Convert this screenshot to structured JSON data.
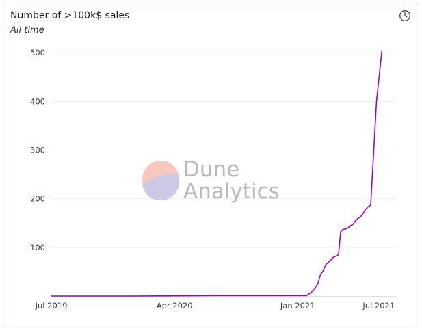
{
  "widget": {
    "title": "Number of >100k$ sales",
    "subtitle": "All time",
    "icon": "clock-icon"
  },
  "watermark": {
    "line1": "Dune",
    "line2": "Analytics",
    "logo_colors": [
      "#f7c9bd",
      "#c9c9e6"
    ]
  },
  "chart_data": {
    "type": "line",
    "title": "Number of >100k$ sales",
    "subtitle": "All time",
    "xlabel": "",
    "ylabel": "",
    "x_ticks": [
      {
        "date": "2019-07-01",
        "label": "Jul 2019"
      },
      {
        "date": "2020-04-01",
        "label": "Apr 2020"
      },
      {
        "date": "2021-01-01",
        "label": "Jan 2021"
      },
      {
        "date": "2021-07-01",
        "label": "Jul 2021"
      }
    ],
    "y_ticks": [
      100,
      200,
      300,
      400,
      500
    ],
    "ylim": [
      0,
      510
    ],
    "xlim": [
      "2019-07-01",
      "2021-08-10"
    ],
    "grid": true,
    "legend": "none",
    "color": "#a000c8",
    "series": [
      {
        "points": [
          {
            "x": "2019-07-01",
            "y": 0
          },
          {
            "x": "2020-01-01",
            "y": 0
          },
          {
            "x": "2020-07-01",
            "y": 1
          },
          {
            "x": "2021-01-01",
            "y": 1
          },
          {
            "x": "2021-01-21",
            "y": 1
          },
          {
            "x": "2021-02-01",
            "y": 8
          },
          {
            "x": "2021-02-10",
            "y": 18
          },
          {
            "x": "2021-02-15",
            "y": 25
          },
          {
            "x": "2021-02-21",
            "y": 45
          },
          {
            "x": "2021-02-27",
            "y": 52
          },
          {
            "x": "2021-03-05",
            "y": 65
          },
          {
            "x": "2021-03-11",
            "y": 70
          },
          {
            "x": "2021-03-17",
            "y": 75
          },
          {
            "x": "2021-03-22",
            "y": 80
          },
          {
            "x": "2021-03-27",
            "y": 82
          },
          {
            "x": "2021-04-02",
            "y": 85
          },
          {
            "x": "2021-04-07",
            "y": 132
          },
          {
            "x": "2021-04-12",
            "y": 137
          },
          {
            "x": "2021-04-18",
            "y": 138
          },
          {
            "x": "2021-04-23",
            "y": 140
          },
          {
            "x": "2021-04-29",
            "y": 145
          },
          {
            "x": "2021-05-04",
            "y": 147
          },
          {
            "x": "2021-05-10",
            "y": 155
          },
          {
            "x": "2021-05-15",
            "y": 159
          },
          {
            "x": "2021-05-21",
            "y": 163
          },
          {
            "x": "2021-05-26",
            "y": 168
          },
          {
            "x": "2021-06-01",
            "y": 178
          },
          {
            "x": "2021-06-07",
            "y": 183
          },
          {
            "x": "2021-06-13",
            "y": 187
          },
          {
            "x": "2021-06-18",
            "y": 270
          },
          {
            "x": "2021-06-26",
            "y": 400
          },
          {
            "x": "2021-07-08",
            "y": 505
          }
        ]
      }
    ]
  }
}
